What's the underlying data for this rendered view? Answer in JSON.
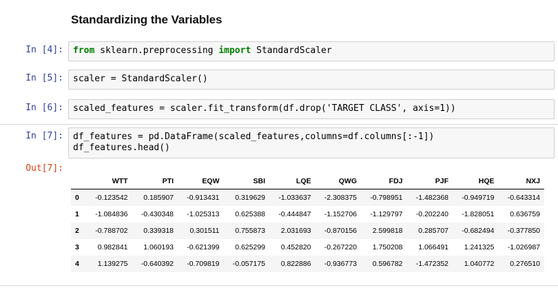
{
  "heading": "Standardizing the Variables",
  "cells": [
    {
      "prompt": "In [4]:",
      "code_parts": [
        {
          "kw": "from"
        },
        {
          "t": " sklearn.preprocessing "
        },
        {
          "kw": "import"
        },
        {
          "t": " StandardScaler"
        }
      ]
    },
    {
      "prompt": "In [5]:",
      "code": "scaler = StandardScaler()"
    },
    {
      "prompt": "In [6]:",
      "code": "scaled_features = scaler.fit_transform(df.drop('TARGET CLASS', axis=1))"
    },
    {
      "prompt": "In [7]:",
      "code_line1": "df_features = pd.DataFrame(scaled_features,columns=df.columns[:-1])",
      "code_line2": "df_features.head()"
    }
  ],
  "output": {
    "prompt": "Out[7]:",
    "columns": [
      "",
      "WTT",
      "PTI",
      "EQW",
      "SBI",
      "LQE",
      "QWG",
      "FDJ",
      "PJF",
      "HQE",
      "NXJ"
    ],
    "rows": [
      [
        "0",
        "-0.123542",
        "0.185907",
        "-0.913431",
        "0.319629",
        "-1.033637",
        "-2.308375",
        "-0.798951",
        "-1.482368",
        "-0.949719",
        "-0.643314"
      ],
      [
        "1",
        "-1.084836",
        "-0.430348",
        "-1.025313",
        "0.625388",
        "-0.444847",
        "-1.152706",
        "-1.129797",
        "-0.202240",
        "-1.828051",
        "0.636759"
      ],
      [
        "2",
        "-0.788702",
        "0.339318",
        "0.301511",
        "0.755873",
        "2.031693",
        "-0.870156",
        "2.599818",
        "0.285707",
        "-0.682494",
        "-0.377850"
      ],
      [
        "3",
        "0.982841",
        "1.060193",
        "-0.621399",
        "0.625299",
        "0.452820",
        "-0.267220",
        "1.750208",
        "1.066491",
        "1.241325",
        "-1.026987"
      ],
      [
        "4",
        "1.139275",
        "-0.640392",
        "-0.709819",
        "-0.057175",
        "0.822886",
        "-0.936773",
        "0.596782",
        "-1.472352",
        "1.040772",
        "0.276510"
      ]
    ]
  }
}
